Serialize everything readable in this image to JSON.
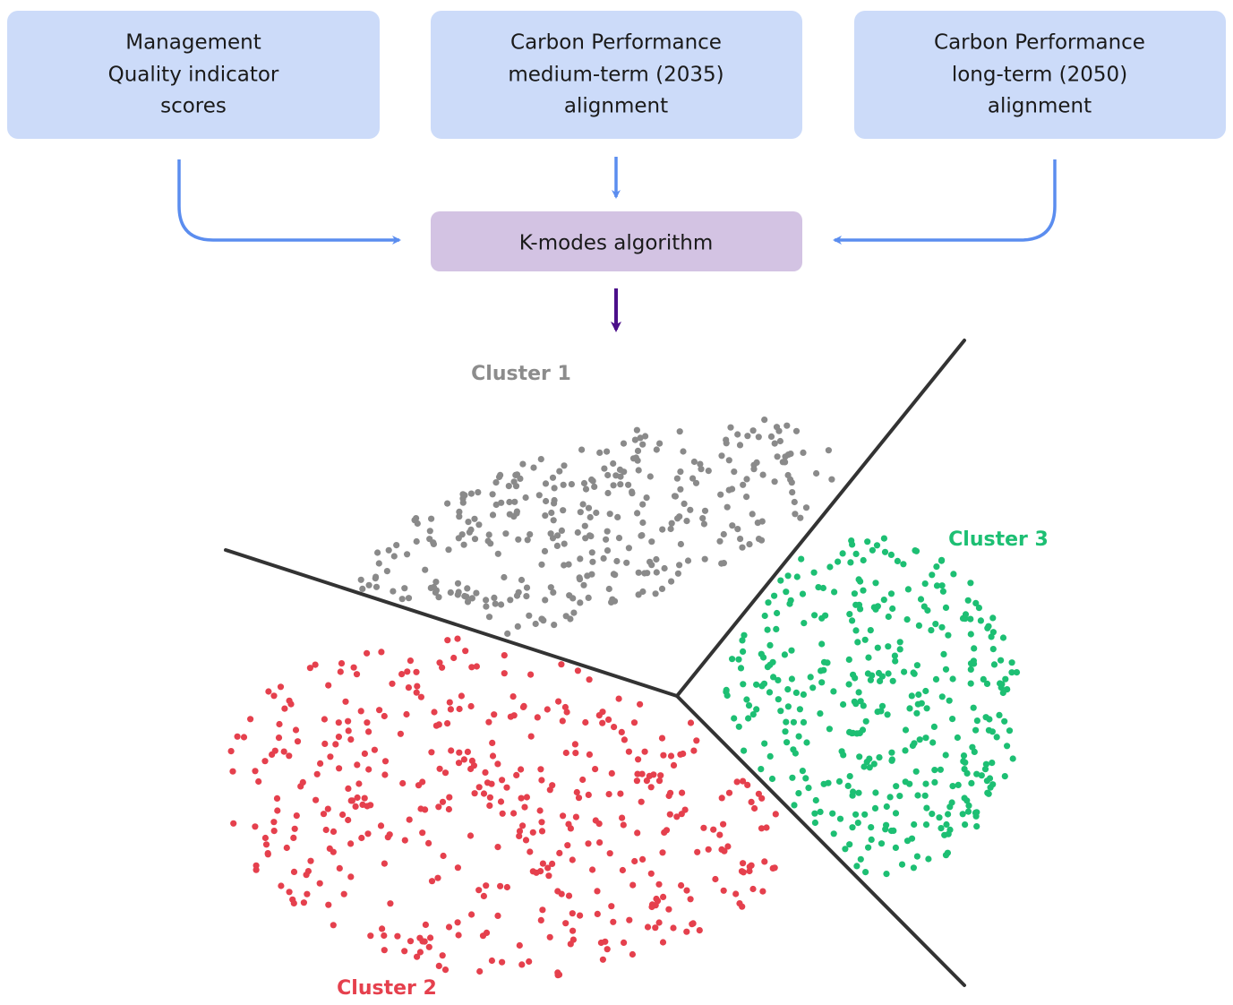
{
  "nodes": [
    {
      "lines": [
        "Management",
        "Quality indicator",
        "scores"
      ]
    },
    {
      "lines": [
        "Carbon Performance",
        "medium-term (2035)",
        "alignment"
      ]
    },
    {
      "lines": [
        "Carbon Performance",
        "long-term (2050)",
        "alignment"
      ]
    }
  ],
  "algorithm": {
    "label": "K-modes algorithm"
  },
  "clusters": [
    {
      "label": "Cluster 1"
    },
    {
      "label": "Cluster 2"
    },
    {
      "label": "Cluster 3"
    }
  ]
}
